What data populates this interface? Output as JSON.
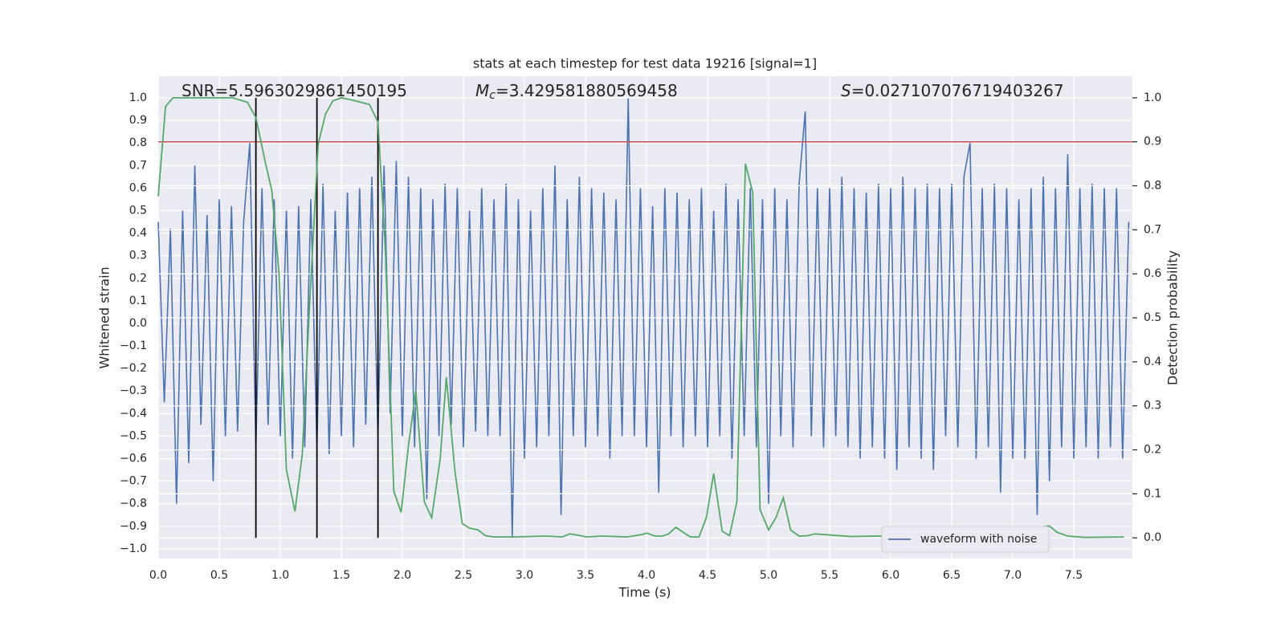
{
  "chart_data": {
    "type": "line",
    "title": "stats at each timestep for test data 19216 [signal=1]",
    "xlabel": "Time (s)",
    "ylabel": "Whitened strain",
    "y2label": "Detection probability",
    "xlim": [
      0,
      7.98
    ],
    "ylim": [
      -1.043,
      1.096
    ],
    "y2lim": [
      -0.047,
      1.049
    ],
    "grid": true,
    "legend": "lower right",
    "xticks": [
      {
        "value": 0,
        "label": "0.0"
      },
      {
        "value": 0.5,
        "label": "0.5"
      },
      {
        "value": 1,
        "label": "1.0"
      },
      {
        "value": 1.5,
        "label": "1.5"
      },
      {
        "value": 2,
        "label": "2.0"
      },
      {
        "value": 2.5,
        "label": "2.5"
      },
      {
        "value": 3,
        "label": "3.0"
      },
      {
        "value": 3.5,
        "label": "3.5"
      },
      {
        "value": 4,
        "label": "4.0"
      },
      {
        "value": 4.5,
        "label": "4.5"
      },
      {
        "value": 5,
        "label": "5.0"
      },
      {
        "value": 5.5,
        "label": "5.5"
      },
      {
        "value": 6,
        "label": "6.0"
      },
      {
        "value": 6.5,
        "label": "6.5"
      },
      {
        "value": 7,
        "label": "7.0"
      },
      {
        "value": 7.5,
        "label": "7.5"
      }
    ],
    "yticks": [
      {
        "value": -1,
        "label": "−1.0"
      },
      {
        "value": -0.9,
        "label": "−0.9"
      },
      {
        "value": -0.8,
        "label": "−0.8"
      },
      {
        "value": -0.7,
        "label": "−0.7"
      },
      {
        "value": -0.6,
        "label": "−0.6"
      },
      {
        "value": -0.5,
        "label": "−0.5"
      },
      {
        "value": -0.4,
        "label": "−0.4"
      },
      {
        "value": -0.3,
        "label": "−0.3"
      },
      {
        "value": -0.2,
        "label": "−0.2"
      },
      {
        "value": -0.1,
        "label": "−0.1"
      },
      {
        "value": 0,
        "label": "0.0"
      },
      {
        "value": 0.1,
        "label": "0.1"
      },
      {
        "value": 0.2,
        "label": "0.2"
      },
      {
        "value": 0.3,
        "label": "0.3"
      },
      {
        "value": 0.4,
        "label": "0.4"
      },
      {
        "value": 0.5,
        "label": "0.5"
      },
      {
        "value": 0.6,
        "label": "0.6"
      },
      {
        "value": 0.7,
        "label": "0.7"
      },
      {
        "value": 0.8,
        "label": "0.8"
      },
      {
        "value": 0.9,
        "label": "0.9"
      },
      {
        "value": 1,
        "label": "1.0"
      }
    ],
    "y2ticks": [
      {
        "value": 0,
        "label": "0.0"
      },
      {
        "value": 0.1,
        "label": "0.1"
      },
      {
        "value": 0.2,
        "label": "0.2"
      },
      {
        "value": 0.3,
        "label": "0.3"
      },
      {
        "value": 0.4,
        "label": "0.4"
      },
      {
        "value": 0.5,
        "label": "0.5"
      },
      {
        "value": 0.6,
        "label": "0.6"
      },
      {
        "value": 0.7,
        "label": "0.7"
      },
      {
        "value": 0.8,
        "label": "0.8"
      },
      {
        "value": 0.9,
        "label": "0.9"
      },
      {
        "value": 1,
        "label": "1.0"
      }
    ],
    "annotations": [
      {
        "text": "SNR=5.5963029861450195"
      },
      {
        "symbol": "M",
        "subscript": "c",
        "text": "=3.429581880569458"
      },
      {
        "symbol": "S",
        "text": "=0.027107076719403267"
      }
    ],
    "threshold": {
      "value": 0.9,
      "axis": "y2",
      "color": "#c44e52"
    },
    "vlines": {
      "x": [
        0.8,
        1.3,
        1.8
      ],
      "y2range": [
        0,
        1
      ],
      "color": "#000000"
    },
    "series": [
      {
        "name": "waveform with noise",
        "color": "#4c72b0",
        "x": [
          0,
          0.05,
          0.1,
          0.15,
          0.2,
          0.25,
          0.3,
          0.35,
          0.4,
          0.45,
          0.5,
          0.55,
          0.6,
          0.65,
          0.7,
          0.75,
          0.8,
          0.85,
          0.9,
          0.95,
          1,
          1.05,
          1.1,
          1.15,
          1.2,
          1.25,
          1.3,
          1.35,
          1.4,
          1.45,
          1.5,
          1.55,
          1.6,
          1.65,
          1.7,
          1.75,
          1.8,
          1.85,
          1.9,
          1.95,
          2,
          2.05,
          2.1,
          2.15,
          2.2,
          2.25,
          2.3,
          2.35,
          2.4,
          2.45,
          2.5,
          2.55,
          2.6,
          2.65,
          2.7,
          2.75,
          2.8,
          2.85,
          2.9,
          2.95,
          3,
          3.05,
          3.1,
          3.15,
          3.2,
          3.25,
          3.3,
          3.35,
          3.4,
          3.45,
          3.5,
          3.55,
          3.6,
          3.65,
          3.7,
          3.75,
          3.8,
          3.85,
          3.9,
          3.95,
          4,
          4.05,
          4.1,
          4.15,
          4.2,
          4.25,
          4.3,
          4.35,
          4.4,
          4.45,
          4.5,
          4.55,
          4.6,
          4.65,
          4.7,
          4.75,
          4.8,
          4.85,
          4.9,
          4.95,
          5,
          5.05,
          5.1,
          5.15,
          5.2,
          5.25,
          5.3,
          5.35,
          5.4,
          5.45,
          5.5,
          5.55,
          5.6,
          5.65,
          5.7,
          5.75,
          5.8,
          5.85,
          5.9,
          5.95,
          6,
          6.05,
          6.1,
          6.15,
          6.2,
          6.25,
          6.3,
          6.35,
          6.4,
          6.45,
          6.5,
          6.55,
          6.6,
          6.65,
          6.7,
          6.75,
          6.8,
          6.85,
          6.9,
          6.95,
          7,
          7.05,
          7.1,
          7.15,
          7.2,
          7.25,
          7.3,
          7.35,
          7.4,
          7.45,
          7.5,
          7.55,
          7.6,
          7.65,
          7.7,
          7.75,
          7.8,
          7.85,
          7.9,
          7.95
        ],
        "values": [
          0.45,
          -0.35,
          0.42,
          -0.8,
          0.5,
          -0.62,
          0.7,
          -0.45,
          0.48,
          -0.7,
          0.55,
          -0.5,
          0.52,
          -0.48,
          0.45,
          0.8,
          -0.55,
          0.6,
          -0.45,
          0.55,
          -0.5,
          0.5,
          -0.6,
          0.52,
          -0.55,
          0.55,
          -0.55,
          0.62,
          -0.58,
          0.5,
          -0.5,
          0.58,
          -0.55,
          0.6,
          -0.45,
          0.65,
          -0.5,
          0.7,
          -0.4,
          0.72,
          -0.5,
          0.65,
          -0.55,
          0.6,
          -0.78,
          0.55,
          -0.5,
          0.62,
          -0.45,
          0.6,
          -0.55,
          0.5,
          -0.48,
          0.6,
          -0.5,
          0.55,
          -0.5,
          0.62,
          -0.95,
          0.55,
          -0.6,
          0.5,
          -0.55,
          0.6,
          -0.5,
          0.7,
          -0.85,
          0.55,
          -0.5,
          0.65,
          -0.55,
          0.6,
          -0.5,
          0.58,
          -0.6,
          0.55,
          -0.5,
          1.0,
          -0.5,
          0.6,
          -0.55,
          0.52,
          -0.75,
          0.6,
          -0.5,
          0.58,
          -0.55,
          0.55,
          -0.5,
          0.6,
          -0.55,
          0.5,
          -0.5,
          0.62,
          -0.6,
          0.55,
          -0.5,
          0.6,
          -0.55,
          0.55,
          -0.8,
          0.6,
          -0.5,
          0.55,
          -0.55,
          0.62,
          0.94,
          -0.5,
          0.6,
          -0.55,
          0.6,
          -0.5,
          0.65,
          -0.55,
          0.6,
          -0.6,
          0.58,
          -0.55,
          0.62,
          -0.6,
          0.6,
          -0.65,
          0.65,
          -0.55,
          0.6,
          -0.6,
          0.62,
          -0.65,
          0.6,
          -0.5,
          0.62,
          -0.55,
          0.65,
          0.8,
          -0.6,
          0.6,
          -0.55,
          0.62,
          -0.75,
          0.6,
          -0.6,
          0.55,
          -0.6,
          0.6,
          -0.85,
          0.65,
          -0.7,
          0.6,
          -0.55,
          0.75,
          -0.6,
          0.6,
          -0.55,
          0.62,
          -0.6,
          0.6,
          -0.55,
          0.6,
          -0.6,
          0.45
        ]
      },
      {
        "color": "#55a868",
        "axis": "y2",
        "x": [
          0,
          0.06,
          0.12,
          0.61,
          0.73,
          0.8,
          0.88,
          0.93,
          0.99,
          1.05,
          1.12,
          1.18,
          1.24,
          1.31,
          1.37,
          1.43,
          1.5,
          1.57,
          1.73,
          1.8,
          1.86,
          1.93,
          1.99,
          2.05,
          2.11,
          2.18,
          2.24,
          2.31,
          2.36,
          2.43,
          2.49,
          2.55,
          2.62,
          2.68,
          2.75,
          2.91,
          3.18,
          3.31,
          3.37,
          3.44,
          3.51,
          3.64,
          3.84,
          3.97,
          4.0,
          4.07,
          4.13,
          4.18,
          4.24,
          4.31,
          4.36,
          4.43,
          4.49,
          4.55,
          4.62,
          4.68,
          4.74,
          4.81,
          4.87,
          4.93,
          5.0,
          5.06,
          5.12,
          5.18,
          5.25,
          5.32,
          5.38,
          5.68,
          5.88,
          6.27,
          6.6,
          7.0,
          7.13,
          7.2,
          7.26,
          7.3,
          7.36,
          7.45,
          7.59,
          7.91
        ],
        "values": [
          0.776,
          0.98,
          1.0,
          1.0,
          0.99,
          0.955,
          0.85,
          0.79,
          0.6,
          0.155,
          0.06,
          0.19,
          0.53,
          0.894,
          0.963,
          0.993,
          1.0,
          0.996,
          0.985,
          0.945,
          0.657,
          0.106,
          0.058,
          0.21,
          0.334,
          0.082,
          0.046,
          0.18,
          0.365,
          0.153,
          0.033,
          0.022,
          0.018,
          0.005,
          0.002,
          0.002,
          0.004,
          0.002,
          0.009,
          0.006,
          0.002,
          0.004,
          0.002,
          0.008,
          0.011,
          0.004,
          0.004,
          0.009,
          0.024,
          0.011,
          0.002,
          0.002,
          0.046,
          0.146,
          0.015,
          0.005,
          0.082,
          0.85,
          0.785,
          0.064,
          0.018,
          0.046,
          0.091,
          0.018,
          0.004,
          0.005,
          0.009,
          0.003,
          0.004,
          0.003,
          0.004,
          0.003,
          0.007,
          0.015,
          0.026,
          0.027,
          0.013,
          0.004,
          0.001,
          0.002
        ]
      }
    ]
  }
}
